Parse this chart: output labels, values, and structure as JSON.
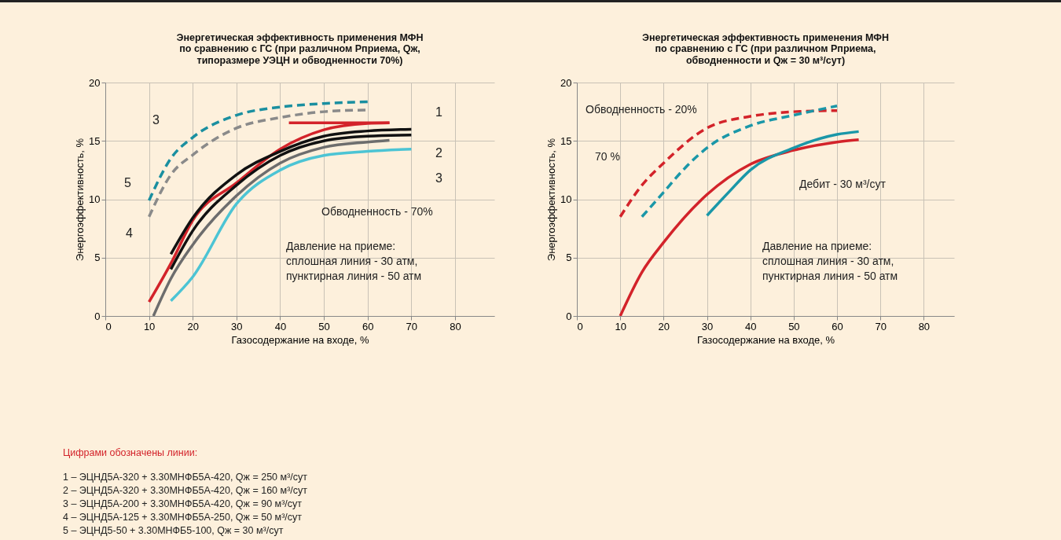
{
  "chart_data": [
    {
      "type": "line",
      "title": "Энергетическая эффективность применения МФН\nпо сравнению с ГС (при различном Рприема, Qж,\nтипоразмере УЭЦН и обводненности 70%)",
      "xlabel": "Газосодержание на входе, %",
      "ylabel": "Энергоэффективность, %",
      "xlim": [
        0,
        89
      ],
      "ylim": [
        0,
        20
      ],
      "xticks": [
        0,
        10,
        20,
        30,
        40,
        50,
        60,
        70,
        80
      ],
      "yticks": [
        0,
        5,
        10,
        15,
        20
      ],
      "grid": true,
      "series": [
        {
          "color": "#1a8fa0",
          "line_style": "dashed",
          "x": [
            10,
            15,
            20,
            30,
            40,
            50,
            60
          ],
          "values": [
            9.9,
            13.5,
            15.3,
            17.2,
            17.9,
            18.2,
            18.35
          ]
        },
        {
          "color": "#8a8a8a",
          "line_style": "dashed",
          "x": [
            10,
            15,
            20,
            30,
            40,
            50,
            60
          ],
          "values": [
            8.5,
            12.1,
            13.8,
            16.1,
            17.0,
            17.5,
            17.65
          ]
        },
        {
          "color": "#d3232a",
          "line_style": "solid",
          "x": [
            10,
            15,
            20,
            30,
            40,
            50,
            60,
            65
          ],
          "values": [
            1.2,
            4.5,
            8.2,
            11.4,
            14.3,
            15.95,
            16.5,
            16.55
          ]
        },
        {
          "color": "#d3232a",
          "line_style": "solid",
          "x": [
            42,
            65
          ],
          "values": [
            16.55,
            16.55
          ]
        },
        {
          "color": "#111111",
          "line_style": "solid",
          "x": [
            15,
            20,
            30,
            40,
            50,
            60,
            70
          ],
          "values": [
            5.3,
            8.4,
            12.1,
            14.1,
            15.4,
            15.85,
            16.0
          ]
        },
        {
          "color": "#111111",
          "line_style": "solid",
          "x": [
            15,
            20,
            30,
            40,
            50,
            60,
            70
          ],
          "values": [
            4.0,
            7.3,
            11.2,
            13.75,
            15.0,
            15.4,
            15.5
          ]
        },
        {
          "color": "#6d6d6d",
          "line_style": "solid",
          "x": [
            11,
            15,
            20,
            30,
            40,
            50,
            60,
            65
          ],
          "values": [
            0,
            3.2,
            6.1,
            10.3,
            13.1,
            14.45,
            14.9,
            15.05
          ]
        },
        {
          "color": "#4cc4d4",
          "line_style": "solid",
          "x": [
            15,
            20,
            30,
            40,
            50,
            60,
            70
          ],
          "values": [
            1.3,
            3.35,
            9.6,
            12.5,
            13.75,
            14.1,
            14.3
          ]
        }
      ],
      "annotations": [
        "1",
        "2",
        "3",
        "3",
        "5",
        "4",
        "Обводненность - 70%",
        "Давление на приеме:\nсплошная линия - 30 атм,\nпунктирная линия - 50 атм",
        "Цифрами обозначены линии:",
        "1 – ЭЦНД5А-320 + 3.30МНФБ5А-420, Qж = 250 м³/сут",
        "2 – ЭЦНД5А-320 + 3.30МНФБ5А-420, Qж = 160 м³/сут",
        "3 – ЭЦНД5А-200 + 3.30МНФБ5А-420, Qж = 90 м³/сут",
        "4 – ЭЦНД5А-125 + 3.30МНФБ5А-250, Qж = 50 м³/сут",
        "5 – ЭЦНД5-50 + 3.30МНФБ5-100, Qж = 30 м³/сут"
      ]
    },
    {
      "type": "line",
      "title": "Энергетическая эффективность применения МФН\nпо сравнению с ГС (при различном Рприема,\nобводненности и Qж = 30 м³/сут)",
      "xlabel": "Газосодержание на входе, %",
      "ylabel": "Энергоэффективность, %",
      "xlim": [
        0,
        87
      ],
      "ylim": [
        0,
        20
      ],
      "xticks": [
        0,
        10,
        20,
        30,
        40,
        50,
        60,
        70,
        80
      ],
      "yticks": [
        0,
        5,
        10,
        15,
        20
      ],
      "grid": true,
      "series": [
        {
          "color": "#d3232a",
          "line_style": "dashed",
          "x": [
            10,
            15,
            20,
            30,
            40,
            50,
            60
          ],
          "values": [
            8.5,
            11.2,
            13.1,
            16.1,
            17.1,
            17.5,
            17.6
          ]
        },
        {
          "color": "#1a97a8",
          "line_style": "dashed",
          "x": [
            15,
            20,
            25,
            30,
            40,
            50,
            60
          ],
          "values": [
            8.5,
            10.6,
            12.7,
            14.4,
            16.3,
            17.2,
            18.0
          ]
        },
        {
          "color": "#d3232a",
          "line_style": "solid",
          "x": [
            10,
            15,
            20,
            30,
            40,
            50,
            60,
            65
          ],
          "values": [
            0,
            3.75,
            6.3,
            10.4,
            13.0,
            14.2,
            14.9,
            15.1
          ]
        },
        {
          "color": "#1a97a8",
          "line_style": "solid",
          "x": [
            30,
            35,
            40,
            50,
            60,
            65
          ],
          "values": [
            8.6,
            10.6,
            12.5,
            14.4,
            15.55,
            15.8
          ]
        }
      ],
      "annotations": [
        "Обводненность - 20%",
        "70 %",
        "Дебит - 30 м³/сут",
        "Давление на приеме:\nсплошная линия - 30 атм,\nпунктирная линия - 50 атм"
      ]
    }
  ]
}
